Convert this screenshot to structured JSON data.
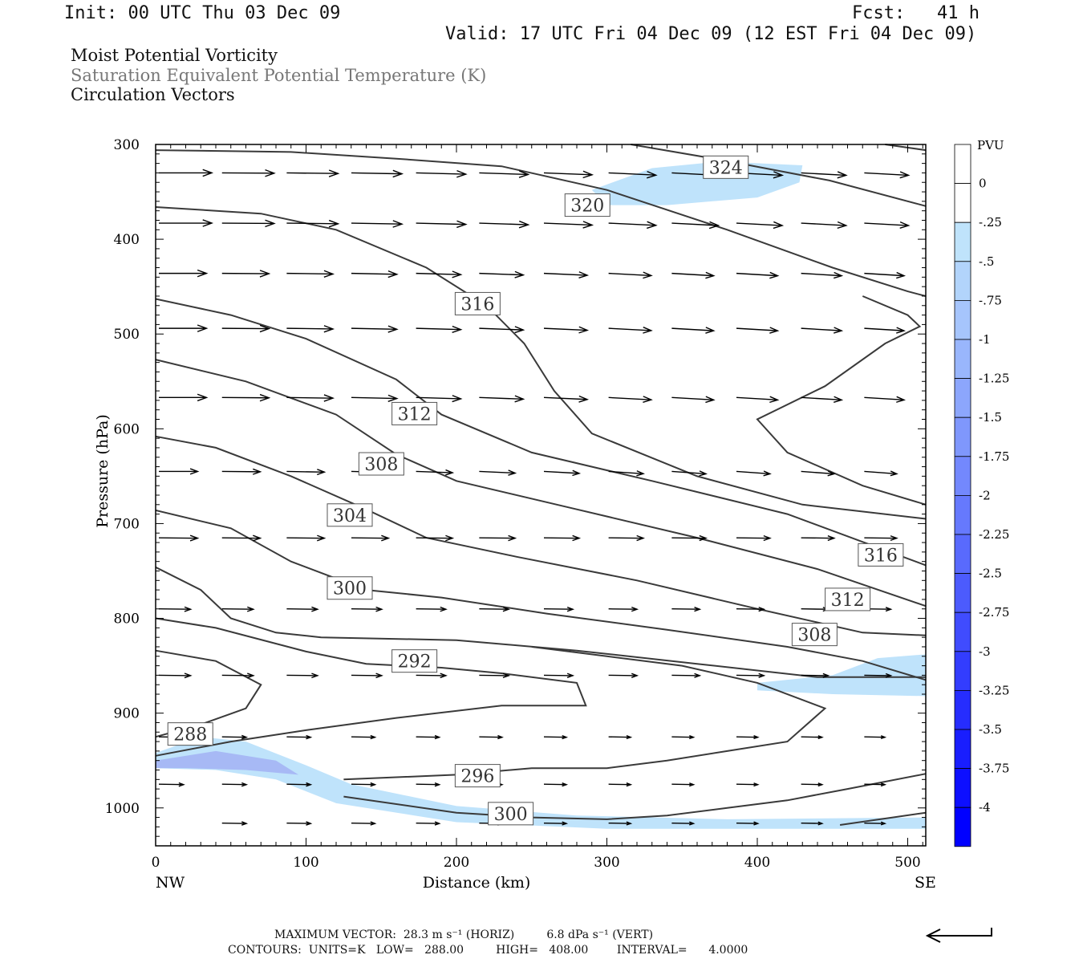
{
  "header": {
    "init": "Init: 00 UTC Thu 03 Dec 09",
    "fcst": "Fcst:   41 h",
    "valid": "Valid: 17 UTC Fri 04 Dec 09 (12 EST Fri 04 Dec 09)"
  },
  "fields": {
    "line1": "Moist Potential Vorticity",
    "line2": "Saturation Equivalent Potential Temperature (K)",
    "line3": "Circulation Vectors"
  },
  "colors": {
    "line2": "#777777",
    "contour": "#3a3a3a",
    "pv_light": "#bfe3fb",
    "pv_mid": "#a7b9f5"
  },
  "chart_data": {
    "type": "cross-section",
    "xlabel": "Distance (km)",
    "ylabel": "Pressure (hPa)",
    "xlim": [
      0,
      512
    ],
    "ylim": [
      1040,
      300
    ],
    "x_ticks": [
      "0",
      "100",
      "200",
      "300",
      "400",
      "500"
    ],
    "x_tick_values": [
      0,
      100,
      200,
      300,
      400,
      500
    ],
    "y_ticks": [
      "300",
      "400",
      "500",
      "600",
      "700",
      "800",
      "900",
      "1000"
    ],
    "y_tick_values": [
      300,
      400,
      500,
      600,
      700,
      800,
      900,
      1000
    ],
    "left_end": "NW",
    "right_end": "SE",
    "contour_labels": [
      {
        "text": "324",
        "x": 378,
        "p": 324
      },
      {
        "text": "320",
        "x": 286,
        "p": 364
      },
      {
        "text": "316",
        "x": 213,
        "p": 468
      },
      {
        "text": "312",
        "x": 171,
        "p": 584
      },
      {
        "text": "308",
        "x": 149,
        "p": 637
      },
      {
        "text": "304",
        "x": 128,
        "p": 691
      },
      {
        "text": "300",
        "x": 128,
        "p": 768
      },
      {
        "text": "292",
        "x": 171,
        "p": 845
      },
      {
        "text": "288",
        "x": 22,
        "p": 922
      },
      {
        "text": "296",
        "x": 213,
        "p": 966
      },
      {
        "text": "300",
        "x": 235,
        "p": 1006
      },
      {
        "text": "316",
        "x": 481,
        "p": 733
      },
      {
        "text": "312",
        "x": 459,
        "p": 780
      },
      {
        "text": "308",
        "x": 437,
        "p": 817
      }
    ],
    "contour_levels_note": "theta-es contours every 4 K",
    "contours": [
      {
        "level": 324,
        "points": [
          [
            316,
            300
          ],
          [
            375,
            316
          ],
          [
            448,
            338
          ],
          [
            512,
            365
          ]
        ]
      },
      {
        "level": 320,
        "points": [
          [
            0,
            306
          ],
          [
            90,
            308
          ],
          [
            160,
            315
          ],
          [
            230,
            323
          ],
          [
            300,
            348
          ],
          [
            380,
            390
          ],
          [
            450,
            430
          ],
          [
            500,
            455
          ],
          [
            512,
            460
          ]
        ]
      },
      {
        "level": 320,
        "points": [
          [
            485,
            300
          ],
          [
            512,
            306
          ]
        ]
      },
      {
        "level": 316,
        "points": [
          [
            0,
            366
          ],
          [
            70,
            373
          ],
          [
            120,
            390
          ],
          [
            180,
            430
          ],
          [
            220,
            470
          ],
          [
            245,
            510
          ],
          [
            265,
            560
          ],
          [
            290,
            605
          ],
          [
            360,
            650
          ],
          [
            430,
            680
          ],
          [
            512,
            695
          ]
        ]
      },
      {
        "level": 316,
        "points": [
          [
            470,
            460
          ],
          [
            500,
            480
          ],
          [
            508,
            492
          ],
          [
            485,
            510
          ],
          [
            445,
            555
          ],
          [
            400,
            590
          ],
          [
            420,
            625
          ],
          [
            470,
            660
          ],
          [
            512,
            680
          ]
        ]
      },
      {
        "level": 312,
        "points": [
          [
            0,
            463
          ],
          [
            50,
            480
          ],
          [
            100,
            505
          ],
          [
            160,
            548
          ],
          [
            190,
            585
          ],
          [
            250,
            625
          ],
          [
            330,
            655
          ],
          [
            420,
            690
          ],
          [
            512,
            744
          ]
        ]
      },
      {
        "level": 308,
        "points": [
          [
            0,
            527
          ],
          [
            60,
            550
          ],
          [
            120,
            585
          ],
          [
            160,
            627
          ],
          [
            200,
            655
          ],
          [
            280,
            685
          ],
          [
            360,
            715
          ],
          [
            440,
            748
          ],
          [
            512,
            787
          ]
        ]
      },
      {
        "level": 304,
        "points": [
          [
            0,
            608
          ],
          [
            40,
            620
          ],
          [
            90,
            650
          ],
          [
            140,
            685
          ],
          [
            180,
            715
          ],
          [
            240,
            735
          ],
          [
            320,
            760
          ],
          [
            400,
            790
          ],
          [
            470,
            815
          ],
          [
            512,
            818
          ]
        ]
      },
      {
        "level": 300,
        "points": [
          [
            0,
            686
          ],
          [
            50,
            705
          ],
          [
            90,
            740
          ],
          [
            140,
            770
          ],
          [
            190,
            778
          ],
          [
            260,
            795
          ],
          [
            340,
            812
          ],
          [
            420,
            830
          ],
          [
            470,
            845
          ],
          [
            512,
            865
          ]
        ]
      },
      {
        "level": 296,
        "points": [
          [
            0,
            746
          ],
          [
            30,
            770
          ],
          [
            50,
            800
          ],
          [
            80,
            815
          ],
          [
            110,
            820
          ],
          [
            200,
            823
          ],
          [
            280,
            834
          ],
          [
            360,
            848
          ],
          [
            440,
            862
          ],
          [
            480,
            862
          ],
          [
            512,
            862
          ]
        ]
      },
      {
        "level": 292,
        "points": [
          [
            0,
            800
          ],
          [
            40,
            810
          ],
          [
            100,
            835
          ],
          [
            140,
            848
          ],
          [
            190,
            852
          ],
          [
            230,
            858
          ],
          [
            280,
            868
          ],
          [
            286,
            892
          ],
          [
            230,
            892
          ],
          [
            160,
            905
          ],
          [
            100,
            918
          ],
          [
            50,
            930
          ],
          [
            0,
            945
          ]
        ]
      },
      {
        "level": 288,
        "points": [
          [
            0,
            834
          ],
          [
            40,
            845
          ],
          [
            70,
            870
          ],
          [
            60,
            895
          ],
          [
            30,
            912
          ],
          [
            0,
            925
          ]
        ]
      },
      {
        "level": 296,
        "points": [
          [
            125,
            970
          ],
          [
            200,
            965
          ],
          [
            250,
            958
          ],
          [
            300,
            958
          ],
          [
            340,
            950
          ],
          [
            380,
            940
          ],
          [
            420,
            930
          ],
          [
            445,
            895
          ],
          [
            400,
            868
          ],
          [
            350,
            850
          ],
          [
            300,
            840
          ],
          [
            250,
            830
          ]
        ]
      },
      {
        "level": 300,
        "points": [
          [
            125,
            988
          ],
          [
            200,
            1005
          ],
          [
            250,
            1010
          ],
          [
            300,
            1012
          ],
          [
            340,
            1008
          ],
          [
            380,
            1000
          ],
          [
            420,
            992
          ],
          [
            460,
            980
          ],
          [
            512,
            964
          ]
        ]
      },
      {
        "level": 304,
        "points": [
          [
            455,
            1018
          ],
          [
            490,
            1010
          ],
          [
            512,
            1005
          ]
        ]
      }
    ],
    "pv_regions": [
      {
        "range": [
          -0.5,
          -0.25
        ],
        "polygon": [
          [
            290,
            348
          ],
          [
            330,
            325
          ],
          [
            375,
            318
          ],
          [
            430,
            322
          ],
          [
            428,
            340
          ],
          [
            400,
            356
          ],
          [
            340,
            364
          ],
          [
            300,
            364
          ]
        ]
      },
      {
        "range": [
          -0.5,
          -0.25
        ],
        "polygon": [
          [
            400,
            868
          ],
          [
            450,
            860
          ],
          [
            480,
            842
          ],
          [
            512,
            838
          ],
          [
            512,
            882
          ],
          [
            450,
            880
          ],
          [
            400,
            876
          ]
        ]
      },
      {
        "range": [
          -0.5,
          -0.25
        ],
        "polygon": [
          [
            0,
            942
          ],
          [
            30,
            925
          ],
          [
            60,
            930
          ],
          [
            100,
            955
          ],
          [
            130,
            975
          ],
          [
            200,
            998
          ],
          [
            280,
            1008
          ],
          [
            380,
            1012
          ],
          [
            512,
            1010
          ],
          [
            512,
            1022
          ],
          [
            300,
            1022
          ],
          [
            200,
            1015
          ],
          [
            120,
            995
          ],
          [
            80,
            970
          ],
          [
            40,
            960
          ],
          [
            0,
            958
          ]
        ]
      },
      {
        "range": [
          -0.75,
          -0.5
        ],
        "polygon": [
          [
            0,
            950
          ],
          [
            40,
            940
          ],
          [
            80,
            950
          ],
          [
            95,
            965
          ],
          [
            60,
            960
          ],
          [
            20,
            958
          ],
          [
            0,
            958
          ]
        ]
      }
    ],
    "vectors_note": "circulation vectors, mostly eastward-directed (NW to SE), weakening toward the surface",
    "colorbar": {
      "title": "PVU",
      "labels": [
        "0",
        "-.25",
        "-.5",
        "-.75",
        "-1",
        "-1.25",
        "-1.5",
        "-1.75",
        "-2",
        "-2.25",
        "-2.5",
        "-2.75",
        "-3",
        "-3.25",
        "-3.5",
        "-3.75",
        "-4"
      ]
    }
  },
  "footer": {
    "line1": "MAXIMUM VECTOR:  28.3 m s⁻¹ (HORIZ)         6.8 dPa s⁻¹ (VERT)",
    "line2": "CONTOURS:  UNITS=K   LOW=   288.00         HIGH=   408.00        INTERVAL=      4.0000"
  }
}
